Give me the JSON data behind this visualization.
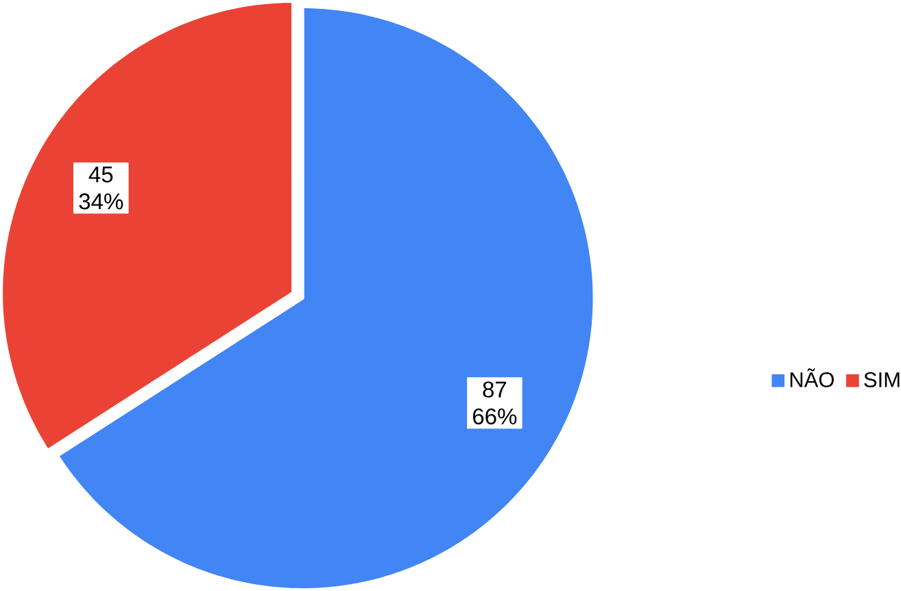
{
  "chart_data": {
    "type": "pie",
    "categories": [
      "NÃO",
      "SIM"
    ],
    "values": [
      87,
      45
    ],
    "colors": [
      "#4285f4",
      "#ea4335"
    ],
    "value_labels": [
      "87 66%",
      "45 34%"
    ],
    "legend": "right"
  }
}
